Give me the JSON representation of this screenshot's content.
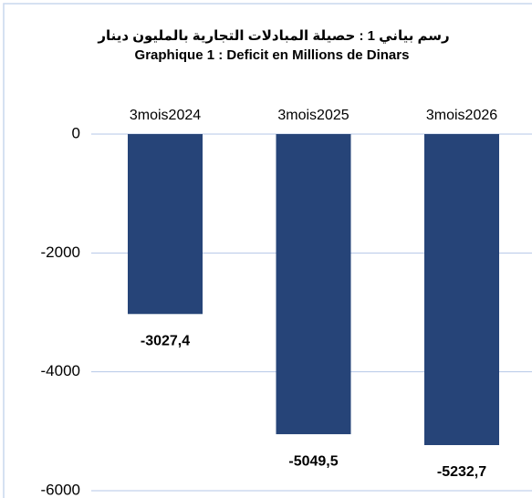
{
  "chart_data": {
    "type": "bar",
    "title": "رسم بياني 1 : حصيلة المبادلات التجارية بالمليون دينار",
    "subtitle": "Graphique 1 : Deficit en Millions de Dinars",
    "categories": [
      "3mois2024",
      "3mois2025",
      "3mois2026"
    ],
    "values": [
      -3027.4,
      -5049.5,
      -5232.7
    ],
    "value_labels": [
      "-3027,4",
      "-5049,5",
      "-5232,7"
    ],
    "color": "#264478",
    "ylim": [
      -6000,
      0
    ],
    "yticks": [
      0,
      -2000,
      -4000,
      -6000
    ],
    "grid": true
  }
}
